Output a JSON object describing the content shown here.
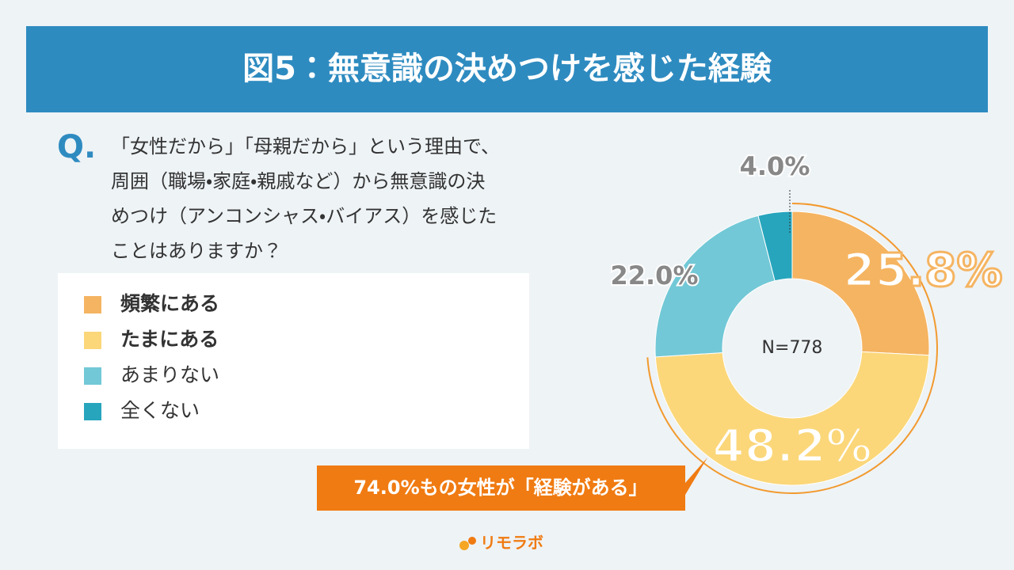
{
  "header": {
    "title": "図5：無意識の決めつけを感じた経験"
  },
  "question": {
    "mark": "Q.",
    "lines": [
      "「女性だから」「母親だから」という理由で、",
      "周囲（職場・家庭・親戚など）から無意識の決",
      "めつけ（アンコンシャス・バイアス）を感じた",
      "ことはありますか？"
    ]
  },
  "chart_data": {
    "type": "pie",
    "categories": [
      "頻繁にある",
      "たまにある",
      "あまりない",
      "全くない"
    ],
    "values": [
      25.8,
      48.2,
      22.0,
      4.0
    ],
    "value_labels": [
      "25.8%",
      "48.2%",
      "22.0%",
      "4.0%"
    ],
    "colors": [
      "#f5b461",
      "#fbd77a",
      "#72c8d6",
      "#27a5bd"
    ],
    "center_label": "N=778"
  },
  "callout": "74.0%もの女性が「経験がある」",
  "brand": "リモラボ"
}
